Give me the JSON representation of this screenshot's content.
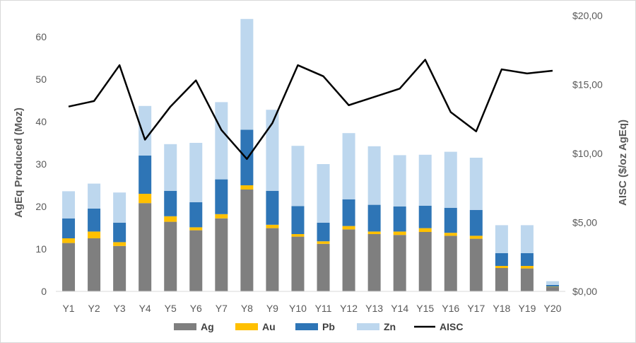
{
  "chart_data": {
    "type": "bar",
    "stacked": true,
    "categories": [
      "Y1",
      "Y2",
      "Y3",
      "Y4",
      "Y5",
      "Y6",
      "Y7",
      "Y8",
      "Y9",
      "Y10",
      "Y11",
      "Y12",
      "Y13",
      "Y14",
      "Y15",
      "Y16",
      "Y17",
      "Y18",
      "Y19",
      "Y20"
    ],
    "series": [
      {
        "name": "Ag",
        "color": "#7f7f7f",
        "values": [
          11.4,
          12.5,
          10.7,
          20.8,
          16.4,
          14.4,
          17.2,
          24.0,
          14.9,
          12.9,
          11.2,
          14.6,
          13.5,
          13.3,
          14.0,
          13.1,
          12.4,
          5.5,
          5.4,
          1.0
        ]
      },
      {
        "name": "Au",
        "color": "#ffc000",
        "values": [
          1.1,
          1.6,
          0.9,
          2.2,
          1.3,
          0.7,
          1.0,
          1.0,
          0.8,
          0.6,
          0.6,
          0.8,
          0.6,
          0.8,
          0.9,
          0.7,
          0.7,
          0.5,
          0.6,
          0.1
        ]
      },
      {
        "name": "Pb",
        "color": "#2e75b6",
        "values": [
          4.7,
          5.4,
          4.6,
          9.0,
          6.0,
          5.9,
          8.2,
          13.1,
          8.0,
          6.6,
          4.4,
          6.3,
          6.3,
          5.9,
          5.3,
          5.9,
          6.1,
          3.0,
          3.0,
          0.4
        ]
      },
      {
        "name": "Zn",
        "color": "#bdd7ee",
        "values": [
          6.4,
          5.9,
          7.1,
          11.7,
          11.0,
          14.0,
          18.2,
          26.1,
          19.1,
          14.2,
          13.8,
          15.6,
          13.8,
          12.1,
          12.0,
          13.2,
          12.3,
          6.6,
          6.6,
          0.9
        ]
      }
    ],
    "line_series": {
      "name": "AISC",
      "color": "#000000",
      "axis": "right",
      "values": [
        13.4,
        13.8,
        16.4,
        11.0,
        13.4,
        15.3,
        11.7,
        9.6,
        12.2,
        16.4,
        15.6,
        13.5,
        14.1,
        14.7,
        16.8,
        13.0,
        11.6,
        16.1,
        15.8,
        16.0
      ]
    },
    "xlabel": "",
    "ylabel": "AgEq Produced (Moz)",
    "y2label": "AISC ($/oz AgEq)",
    "ylim": [
      0,
      65
    ],
    "y_ticks": [
      0,
      10,
      20,
      30,
      40,
      50,
      60
    ],
    "y2lim": [
      0,
      20
    ],
    "y2_ticks": [
      "$0,00",
      "$5,00",
      "$10,00",
      "$15,00",
      "$20,00"
    ],
    "grid": false,
    "legend_position": "bottom"
  }
}
